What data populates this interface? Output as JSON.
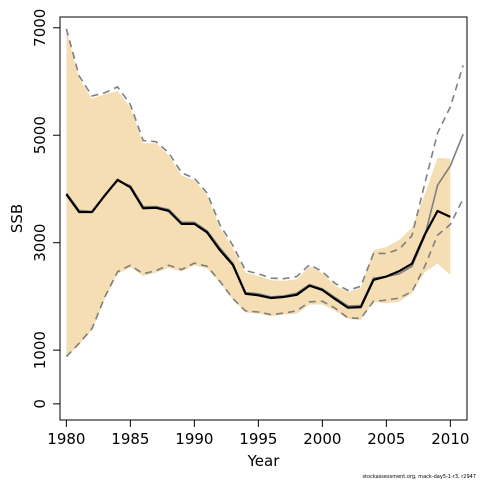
{
  "chart_data": {
    "type": "line",
    "xlabel": "Year",
    "ylabel": "SSB",
    "xlim": [
      1979.5,
      2011.3
    ],
    "ylim": [
      -300,
      7200
    ],
    "xticks": [
      "1980",
      "1985",
      "1990",
      "1995",
      "2000",
      "2005",
      "2010"
    ],
    "yticks": [
      "0",
      "1000",
      "3000",
      "5000",
      "7000"
    ],
    "x": [
      1980,
      1981,
      1982,
      1983,
      1984,
      1985,
      1986,
      1987,
      1988,
      1989,
      1990,
      1991,
      1992,
      1993,
      1994,
      1995,
      1996,
      1997,
      1998,
      1999,
      2000,
      2001,
      2002,
      2003,
      2004,
      2005,
      2006,
      2007,
      2008,
      2009,
      2010,
      2011
    ],
    "band": {
      "x": [
        1980,
        1981,
        1982,
        1983,
        1984,
        1985,
        1986,
        1987,
        1988,
        1989,
        1990,
        1991,
        1992,
        1993,
        1994,
        1995,
        1996,
        1997,
        1998,
        1999,
        2000,
        2001,
        2002,
        2003,
        2004,
        2005,
        2006,
        2007,
        2008,
        2009,
        2010
      ],
      "upper": [
        6950,
        6050,
        5680,
        5760,
        5820,
        5520,
        4850,
        4850,
        4620,
        4250,
        4160,
        3880,
        3280,
        2900,
        2440,
        2380,
        2300,
        2290,
        2320,
        2560,
        2430,
        2200,
        2080,
        2160,
        2860,
        2920,
        3050,
        3280,
        3900,
        4580,
        4560
      ],
      "lower": [
        870,
        1100,
        1370,
        1950,
        2420,
        2540,
        2380,
        2440,
        2530,
        2460,
        2580,
        2520,
        2250,
        1940,
        1700,
        1680,
        1630,
        1660,
        1680,
        1850,
        1850,
        1730,
        1580,
        1560,
        1900,
        1870,
        1900,
        2060,
        2450,
        2610,
        2400
      ],
      "color": "#f5deb3"
    },
    "series": [
      {
        "values": [
          3920,
          3600,
          3580,
          3880,
          4150,
          4060,
          3670,
          3670,
          3620,
          3380,
          3380,
          3220,
          2900,
          2620,
          2070,
          2050,
          1990,
          2010,
          2060,
          2220,
          2140,
          1980,
          1820,
          1830,
          2340,
          2370,
          2420,
          2560,
          3120,
          4070,
          4430,
          5020
        ],
        "color": "#7f7f7f",
        "dash": "solid"
      },
      {
        "values": [
          6980,
          6100,
          5730,
          5790,
          5900,
          5570,
          4900,
          4880,
          4670,
          4300,
          4200,
          3920,
          3330,
          2950,
          2480,
          2420,
          2340,
          2330,
          2370,
          2590,
          2460,
          2240,
          2110,
          2190,
          2800,
          2800,
          2880,
          3130,
          4100,
          5040,
          5530,
          6300
        ],
        "color": "#7f7f7f",
        "dash": "dashed"
      },
      {
        "values": [
          880,
          1130,
          1400,
          1990,
          2460,
          2580,
          2420,
          2480,
          2580,
          2500,
          2620,
          2560,
          2280,
          1960,
          1730,
          1710,
          1660,
          1690,
          1730,
          1900,
          1910,
          1780,
          1600,
          1590,
          1910,
          1930,
          1970,
          2090,
          2560,
          3140,
          3340,
          3820
        ],
        "color": "#7f7f7f",
        "dash": "dashed"
      },
      {
        "x": [
          1980,
          1981,
          1982,
          1983,
          1984,
          1985,
          1986,
          1987,
          1988,
          1989,
          1990,
          1991,
          1992,
          1993,
          1994,
          1995,
          1996,
          1997,
          1998,
          1999,
          2000,
          2001,
          2002,
          2003,
          2004,
          2005,
          2006,
          2007,
          2008,
          2009,
          2010
        ],
        "values": [
          3900,
          3570,
          3570,
          3880,
          4170,
          4030,
          3640,
          3650,
          3590,
          3350,
          3350,
          3190,
          2860,
          2590,
          2050,
          2020,
          1970,
          1990,
          2030,
          2200,
          2120,
          1950,
          1790,
          1800,
          2310,
          2370,
          2470,
          2610,
          3150,
          3590,
          3480
        ],
        "color": "#000000",
        "dash": "solid"
      }
    ],
    "footnote": "stockassessment.org, mack-day5-1-r3, r2947"
  }
}
